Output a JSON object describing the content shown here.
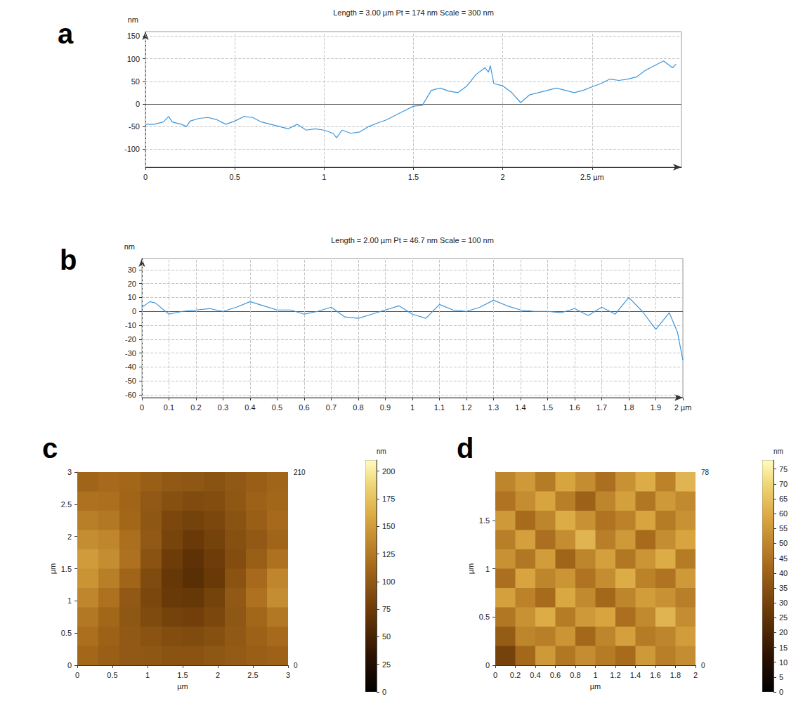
{
  "chart_data": [
    {
      "type": "line",
      "panel": "a",
      "title": "Length = 3.00 µm Pt = 174 nm Scale = 300 nm",
      "y_label": "nm",
      "color": "#3c96dc",
      "grid": true,
      "xlim": [
        0,
        3
      ],
      "ylim": [
        -140,
        160
      ],
      "xticks": [
        0,
        0.5,
        1,
        1.5,
        2,
        {
          "value": 2.5,
          "label": "2.5 µm"
        }
      ],
      "yticks": [
        -100,
        -50,
        0,
        50,
        100,
        150
      ],
      "x": [
        0,
        0.05,
        0.1,
        0.13,
        0.15,
        0.2,
        0.23,
        0.25,
        0.3,
        0.35,
        0.4,
        0.45,
        0.5,
        0.55,
        0.6,
        0.65,
        0.7,
        0.75,
        0.8,
        0.85,
        0.9,
        0.95,
        1.0,
        1.05,
        1.07,
        1.1,
        1.15,
        1.2,
        1.25,
        1.3,
        1.35,
        1.4,
        1.45,
        1.5,
        1.55,
        1.6,
        1.65,
        1.7,
        1.75,
        1.8,
        1.85,
        1.9,
        1.92,
        1.93,
        1.95,
        2.0,
        2.05,
        2.1,
        2.15,
        2.2,
        2.25,
        2.3,
        2.35,
        2.4,
        2.45,
        2.5,
        2.55,
        2.6,
        2.65,
        2.7,
        2.75,
        2.8,
        2.85,
        2.9,
        2.95,
        2.97
      ],
      "values": [
        -45,
        -45,
        -40,
        -28,
        -40,
        -45,
        -50,
        -38,
        -32,
        -30,
        -35,
        -45,
        -38,
        -28,
        -30,
        -40,
        -45,
        -50,
        -55,
        -45,
        -58,
        -55,
        -58,
        -65,
        -75,
        -58,
        -65,
        -62,
        -50,
        -42,
        -35,
        -25,
        -15,
        -5,
        -3,
        30,
        35,
        28,
        25,
        40,
        65,
        80,
        70,
        85,
        45,
        40,
        25,
        3,
        20,
        25,
        30,
        35,
        30,
        25,
        30,
        38,
        45,
        55,
        52,
        55,
        60,
        75,
        85,
        95,
        80,
        88
      ]
    },
    {
      "type": "line",
      "panel": "b",
      "title": "Length = 2.00 µm Pt = 46.7 nm Scale = 100 nm",
      "y_label": "nm",
      "color": "#3c96dc",
      "grid": true,
      "xlim": [
        0,
        2
      ],
      "ylim": [
        -62,
        38
      ],
      "xticks": [
        0,
        0.1,
        0.2,
        0.3,
        0.4,
        0.5,
        0.6,
        0.7,
        0.8,
        0.9,
        1,
        1.1,
        1.2,
        1.3,
        1.4,
        1.5,
        1.6,
        1.7,
        1.8,
        1.9,
        {
          "value": 2,
          "label": "2 µm"
        }
      ],
      "yticks": [
        -60,
        -50,
        -40,
        -30,
        -20,
        -10,
        0,
        10,
        20,
        30
      ],
      "x": [
        0,
        0.03,
        0.05,
        0.1,
        0.15,
        0.2,
        0.25,
        0.3,
        0.35,
        0.4,
        0.45,
        0.5,
        0.55,
        0.6,
        0.65,
        0.7,
        0.75,
        0.8,
        0.85,
        0.9,
        0.95,
        1.0,
        1.05,
        1.1,
        1.15,
        1.2,
        1.25,
        1.3,
        1.35,
        1.4,
        1.45,
        1.5,
        1.55,
        1.6,
        1.65,
        1.7,
        1.75,
        1.8,
        1.85,
        1.9,
        1.95,
        1.98,
        2.0
      ],
      "values": [
        3,
        7,
        6,
        -2,
        0,
        1,
        2,
        0,
        3,
        7,
        4,
        1,
        1,
        -2,
        0,
        3,
        -4,
        -5,
        -2,
        1,
        4,
        -2,
        -5,
        5,
        1,
        0,
        3,
        8,
        4,
        1,
        0,
        0,
        -1,
        2,
        -3,
        3,
        -2,
        10,
        0,
        -13,
        -1,
        -15,
        -35
      ]
    },
    {
      "type": "heatmap",
      "panel": "c",
      "x_label": "µm",
      "y_label": "µm",
      "xlim": [
        0,
        3
      ],
      "ylim": [
        0,
        3
      ],
      "xticks": [
        0,
        0.5,
        1,
        1.5,
        2,
        2.5,
        3
      ],
      "yticks": [
        0,
        0.5,
        1,
        1.5,
        2,
        2.5,
        3
      ],
      "z_corner_labels": [
        210,
        0
      ],
      "cells": [
        [
          110,
          115,
          112,
          105,
          100,
          98,
          95,
          100,
          105,
          110
        ],
        [
          120,
          118,
          110,
          100,
          92,
          88,
          90,
          98,
          108,
          112
        ],
        [
          130,
          125,
          112,
          98,
          85,
          80,
          85,
          95,
          105,
          115
        ],
        [
          140,
          135,
          118,
          100,
          82,
          72,
          80,
          92,
          100,
          110
        ],
        [
          150,
          140,
          120,
          95,
          75,
          65,
          75,
          90,
          105,
          120
        ],
        [
          145,
          130,
          110,
          88,
          70,
          62,
          72,
          95,
          115,
          135
        ],
        [
          135,
          120,
          100,
          85,
          72,
          70,
          80,
          100,
          120,
          140
        ],
        [
          125,
          112,
          98,
          88,
          80,
          78,
          85,
          98,
          112,
          125
        ],
        [
          118,
          108,
          100,
          95,
          90,
          88,
          92,
          100,
          108,
          115
        ],
        [
          112,
          105,
          100,
          98,
          95,
          95,
          98,
          102,
          105,
          108
        ]
      ],
      "colorbar": {
        "label": "nm",
        "range": [
          0,
          210
        ],
        "ticks": [
          0,
          25,
          50,
          75,
          100,
          125,
          150,
          175,
          200
        ]
      }
    },
    {
      "type": "heatmap",
      "panel": "d",
      "x_label": "µm",
      "y_label": "µm",
      "xlim": [
        0,
        2
      ],
      "ylim": [
        0,
        2
      ],
      "xticks": [
        0,
        0.2,
        0.4,
        0.6,
        0.8,
        1,
        1.2,
        1.4,
        1.6,
        1.8,
        2
      ],
      "yticks": [
        0,
        0.5,
        1,
        1.5
      ],
      "z_corner_labels": [
        78,
        0
      ],
      "cells": [
        [
          50,
          55,
          47,
          58,
          52,
          44,
          53,
          60,
          49,
          62
        ],
        [
          45,
          52,
          58,
          48,
          40,
          50,
          57,
          46,
          55,
          51
        ],
        [
          55,
          43,
          50,
          60,
          53,
          45,
          49,
          58,
          47,
          53
        ],
        [
          48,
          57,
          44,
          52,
          62,
          48,
          55,
          43,
          52,
          58
        ],
        [
          53,
          46,
          56,
          41,
          50,
          57,
          46,
          54,
          60,
          47
        ],
        [
          44,
          58,
          50,
          54,
          45,
          52,
          60,
          49,
          45,
          55
        ],
        [
          57,
          49,
          43,
          59,
          51,
          42,
          50,
          56,
          53,
          48
        ],
        [
          46,
          53,
          60,
          47,
          55,
          58,
          44,
          51,
          62,
          52
        ],
        [
          38,
          50,
          48,
          54,
          42,
          50,
          57,
          47,
          50,
          56
        ],
        [
          30,
          42,
          55,
          46,
          52,
          47,
          43,
          55,
          48,
          52
        ]
      ],
      "colorbar": {
        "label": "nm",
        "range": [
          0,
          78
        ],
        "ticks": [
          0,
          5,
          10,
          15,
          20,
          25,
          30,
          35,
          40,
          45,
          50,
          55,
          60,
          65,
          70,
          75
        ]
      }
    }
  ]
}
